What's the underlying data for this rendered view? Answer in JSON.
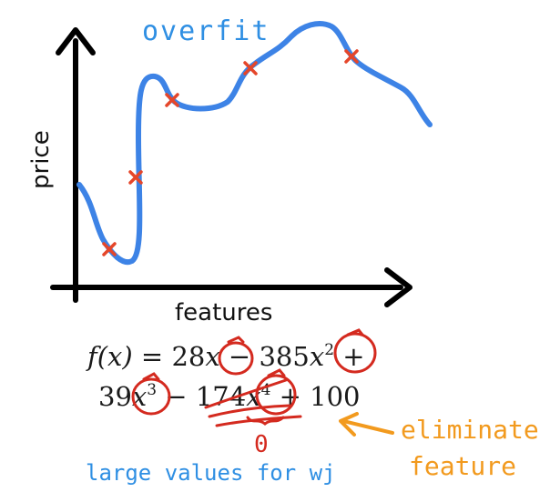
{
  "title": "overfit",
  "axes": {
    "y_label": "price",
    "x_label": "features"
  },
  "equation": {
    "line1": {
      "lhs": "f(x) = ",
      "t1_coef": "28",
      "t1_var": "x",
      "op1": " − ",
      "t2_coef": "385",
      "t2_var": "x",
      "t2_pow": "2",
      "op2": " +"
    },
    "line2": {
      "t3_coef": "39",
      "t3_var": "x",
      "t3_pow": "3",
      "op3": " − ",
      "t4_coef": "174",
      "t4_var": "x",
      "t4_pow": "4",
      "op4": " + 100"
    }
  },
  "zero_note": "0",
  "left_note": "large values for wj",
  "right_note_line1": "eliminate",
  "right_note_line2": "feature",
  "colors": {
    "curve": "#3d83e6",
    "markers": "#e5462a",
    "circles": "#d42a1f",
    "blue_text": "#2f8fe3",
    "orange_text": "#f29a1e",
    "axes": "#000000"
  }
}
